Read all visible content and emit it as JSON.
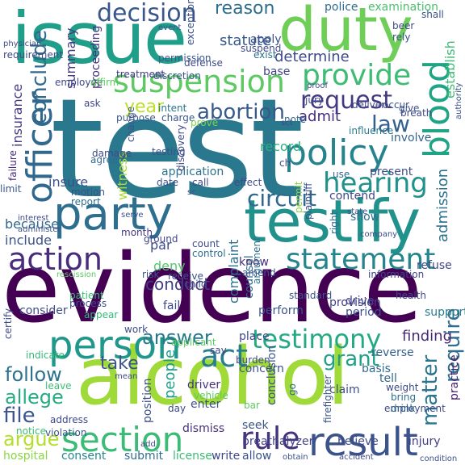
{
  "words": [
    {
      "text": "test",
      "color": "#2a788e"
    },
    {
      "text": "evidence",
      "color": "#440154"
    },
    {
      "text": "alcohol",
      "color": "#a0da39"
    },
    {
      "text": "issue",
      "color": "#1f9e89"
    },
    {
      "text": "duty",
      "color": "#6ece58"
    },
    {
      "text": "testify",
      "color": "#21918c"
    },
    {
      "text": "party",
      "color": "#2e6e8e"
    },
    {
      "text": "decision",
      "color": "#39568c"
    },
    {
      "text": "suspension",
      "color": "#5ec962"
    },
    {
      "text": "provide",
      "color": "#3fbc73"
    },
    {
      "text": "blood",
      "color": "#20a486"
    },
    {
      "text": "officer",
      "color": "#31688e"
    },
    {
      "text": "policy",
      "color": "#25838e"
    },
    {
      "text": "person",
      "color": "#1f988b"
    },
    {
      "text": "action",
      "color": "#472d7b"
    },
    {
      "text": "statement",
      "color": "#25858e"
    },
    {
      "text": "testimony",
      "color": "#23a983"
    },
    {
      "text": "section",
      "color": "#3bbb75"
    },
    {
      "text": "result",
      "color": "#3b528b"
    },
    {
      "text": "rule",
      "color": "#46337e"
    },
    {
      "text": "act",
      "color": "#277f8e"
    },
    {
      "text": "circuit",
      "color": "#31688e"
    },
    {
      "text": "hearing",
      "color": "#21918c"
    },
    {
      "text": "law",
      "color": "#355f8d"
    },
    {
      "text": "request",
      "color": "#443a83"
    },
    {
      "text": "abortion",
      "color": "#38598c"
    },
    {
      "text": "reason",
      "color": "#2e6e8e"
    },
    {
      "text": "statute",
      "color": "#38588c"
    },
    {
      "text": "determine",
      "color": "#3e4a89"
    },
    {
      "text": "answer",
      "color": "#2a788e"
    },
    {
      "text": "conclude",
      "color": "#31688e"
    },
    {
      "text": "year",
      "color": "#bddf26"
    },
    {
      "text": "grant",
      "color": "#1fa088"
    },
    {
      "text": "matter",
      "color": "#2a768e"
    },
    {
      "text": "require",
      "color": "#2e6f8e"
    },
    {
      "text": "follow",
      "color": "#2c728e"
    },
    {
      "text": "allege",
      "color": "#25ac82"
    },
    {
      "text": "take",
      "color": "#3b528b"
    },
    {
      "text": "argue",
      "color": "#b5de2b"
    },
    {
      "text": "file",
      "color": "#3a548c"
    },
    {
      "text": "admission",
      "color": "#2c718e"
    },
    {
      "text": "establish",
      "color": "#3dbc74"
    },
    {
      "text": "examination",
      "color": "#4ac16d"
    },
    {
      "text": "conduct",
      "color": "#433e85"
    },
    {
      "text": "deny",
      "color": "#52c569"
    },
    {
      "text": "finding",
      "color": "#482979"
    },
    {
      "text": "witness",
      "color": "#a8db34"
    },
    {
      "text": "insurance",
      "color": "#443983"
    },
    {
      "text": "summary",
      "color": "#443b84"
    },
    {
      "text": "proceeding",
      "color": "#46327e"
    },
    {
      "text": "record",
      "color": "#2ab07f"
    },
    {
      "text": "insure",
      "color": "#3b528b"
    },
    {
      "text": "admit",
      "color": "#472f7d"
    },
    {
      "text": "apply",
      "color": "#3a538b"
    },
    {
      "text": "base",
      "color": "#414487"
    },
    {
      "text": "police",
      "color": "#2f6c8e"
    },
    {
      "text": "reverse",
      "color": "#355f8d"
    },
    {
      "text": "involve",
      "color": "#33638d"
    },
    {
      "text": "present",
      "color": "#3e4c8a"
    },
    {
      "text": "contend",
      "color": "#3f4788"
    },
    {
      "text": "practice",
      "color": "#482071"
    },
    {
      "text": "complaint",
      "color": "#2c728e"
    },
    {
      "text": "counsel",
      "color": "#2e6e8e"
    },
    {
      "text": "people",
      "color": "#1f9f88"
    },
    {
      "text": "concern",
      "color": "#3b528b"
    },
    {
      "text": "because",
      "color": "#31688e"
    },
    {
      "text": "include",
      "color": "#3b528b"
    },
    {
      "text": "consider",
      "color": "#3e4a89"
    },
    {
      "text": "perform",
      "color": "#39568c"
    },
    {
      "text": "provision",
      "color": "#433e85"
    },
    {
      "text": "drive",
      "color": "#3f4788"
    },
    {
      "text": "period",
      "color": "#3a548c"
    },
    {
      "text": "support",
      "color": "#287d8e"
    },
    {
      "text": "breathalyzer",
      "color": "#414487"
    },
    {
      "text": "seek",
      "color": "#39568c"
    },
    {
      "text": "dismiss",
      "color": "#472f7d"
    },
    {
      "text": "enter",
      "color": "#3b528b"
    },
    {
      "text": "place",
      "color": "#3f4889"
    },
    {
      "text": "tell",
      "color": "#31688e"
    },
    {
      "text": "claim",
      "color": "#3e4c8a"
    },
    {
      "text": "basis",
      "color": "#2f6b8e"
    },
    {
      "text": "believe",
      "color": "#3e4a89"
    },
    {
      "text": "conclusion",
      "color": "#39558c"
    },
    {
      "text": "position",
      "color": "#3c4f8a"
    },
    {
      "text": "driver",
      "color": "#46337e"
    },
    {
      "text": "fail",
      "color": "#3f4788"
    },
    {
      "text": "application",
      "color": "#2c728e"
    },
    {
      "text": "show",
      "color": "#2e6e8e"
    },
    {
      "text": "refuse",
      "color": "#3f4889"
    },
    {
      "text": "know",
      "color": "#472f7d"
    },
    {
      "text": "par",
      "color": "#3e4a89"
    },
    {
      "text": "hospital",
      "color": "#8bd646"
    },
    {
      "text": "consent",
      "color": "#25848e"
    },
    {
      "text": "submit",
      "color": "#2f6c8e"
    },
    {
      "text": "license",
      "color": "#3dbc74"
    },
    {
      "text": "write",
      "color": "#3f4788"
    },
    {
      "text": "allow",
      "color": "#3b528b"
    },
    {
      "text": "injury",
      "color": "#433e85"
    },
    {
      "text": "intent",
      "color": "#2c728e"
    },
    {
      "text": "charge",
      "color": "#39568c"
    },
    {
      "text": "purpose",
      "color": "#38598c"
    },
    {
      "text": "prove",
      "color": "#7ad151"
    },
    {
      "text": "call",
      "color": "#3e4a89"
    },
    {
      "text": "motion",
      "color": "#3b528b"
    },
    {
      "text": "report",
      "color": "#2e6e8e"
    },
    {
      "text": "agree",
      "color": "#31688e"
    },
    {
      "text": "failure",
      "color": "#472d7b"
    },
    {
      "text": "give",
      "color": "#3b528b"
    },
    {
      "text": "influence",
      "color": "#2a788e"
    },
    {
      "text": "use",
      "color": "#31688e"
    },
    {
      "text": "right",
      "color": "#2e6e8e"
    },
    {
      "text": "month",
      "color": "#443983"
    },
    {
      "text": "risk",
      "color": "#39568c"
    },
    {
      "text": "child",
      "color": "#3e4a89"
    },
    {
      "text": "amend",
      "color": "#3b528b"
    },
    {
      "text": "argument",
      "color": "#2c728e"
    },
    {
      "text": "appear",
      "color": "#35b779"
    },
    {
      "text": "work",
      "color": "#3e4c8a"
    },
    {
      "text": "say",
      "color": "#3f4788"
    },
    {
      "text": "ground",
      "color": "#414487"
    },
    {
      "text": "employee",
      "color": "#3f4788"
    },
    {
      "text": "requirement",
      "color": "#3e4a89"
    },
    {
      "text": "treatment",
      "color": "#443b84"
    },
    {
      "text": "permission",
      "color": "#39568c"
    },
    {
      "text": "defense",
      "color": "#3e4a89"
    },
    {
      "text": "affirm",
      "color": "#5ec962"
    },
    {
      "text": "discretion",
      "color": "#3b528b"
    },
    {
      "text": "ask",
      "color": "#3f4788"
    },
    {
      "text": "note",
      "color": "#2e6e8e"
    },
    {
      "text": "jury",
      "color": "#3e4a89"
    },
    {
      "text": "exist",
      "color": "#2c728e"
    },
    {
      "text": "shall",
      "color": "#3b528b"
    },
    {
      "text": "certify",
      "color": "#3e4a89"
    },
    {
      "text": "limit",
      "color": "#39568c"
    },
    {
      "text": "patient",
      "color": "#3dbc74"
    },
    {
      "text": "health",
      "color": "#3e4a89"
    },
    {
      "text": "standard",
      "color": "#3b528b"
    },
    {
      "text": "information",
      "color": "#3f4788"
    },
    {
      "text": "process",
      "color": "#3e4a89"
    },
    {
      "text": "indicate",
      "color": "#35b779"
    },
    {
      "text": "applicant",
      "color": "#5ec962"
    },
    {
      "text": "address",
      "color": "#3e4a89"
    },
    {
      "text": "notice",
      "color": "#3dbc74"
    },
    {
      "text": "violation",
      "color": "#39568c"
    },
    {
      "text": "leave",
      "color": "#3dbc74"
    },
    {
      "text": "employment",
      "color": "#3e4a89"
    },
    {
      "text": "bring",
      "color": "#2e6e8e"
    },
    {
      "text": "drink",
      "color": "#31688e"
    },
    {
      "text": "weight",
      "color": "#3e4a89"
    },
    {
      "text": "firefighter",
      "color": "#3b528b"
    },
    {
      "text": "burden",
      "color": "#3e4a89"
    },
    {
      "text": "vehicle",
      "color": "#5ec962"
    },
    {
      "text": "bar",
      "color": "#5ec962"
    },
    {
      "text": "go",
      "color": "#31688e"
    },
    {
      "text": "day",
      "color": "#3e4a89"
    },
    {
      "text": "receive",
      "color": "#3b528b"
    },
    {
      "text": "control",
      "color": "#2e6e8e"
    },
    {
      "text": "count",
      "color": "#3e4a89"
    },
    {
      "text": "date",
      "color": "#3b528b"
    },
    {
      "text": "effect",
      "color": "#3e4a89"
    },
    {
      "text": "plaintiff",
      "color": "#3b528b"
    },
    {
      "text": "permit",
      "color": "#8bd646"
    },
    {
      "text": "discovery",
      "color": "#3e4a89"
    },
    {
      "text": "testing",
      "color": "#3b528b"
    },
    {
      "text": "damage",
      "color": "#3e4a89"
    },
    {
      "text": "change",
      "color": "#3b528b"
    },
    {
      "text": "breath",
      "color": "#3e4a89"
    },
    {
      "text": "authority",
      "color": "#3b528b"
    },
    {
      "text": "deliver",
      "color": "#3e4a89"
    },
    {
      "text": "occur",
      "color": "#3b528b"
    },
    {
      "text": "beer",
      "color": "#3e4a89"
    },
    {
      "text": "rely",
      "color": "#3b528b"
    },
    {
      "text": "suspend",
      "color": "#3e4a89"
    },
    {
      "text": "exception",
      "color": "#3b528b"
    },
    {
      "text": "physician",
      "color": "#3e4a89"
    },
    {
      "text": "administer",
      "color": "#3b528b"
    },
    {
      "text": "interest",
      "color": "#3e4a89"
    },
    {
      "text": "rescission",
      "color": "#5ec962"
    },
    {
      "text": "company",
      "color": "#3e4a89"
    },
    {
      "text": "condition",
      "color": "#3b528b"
    },
    {
      "text": "accident",
      "color": "#3e4a89"
    },
    {
      "text": "obtain",
      "color": "#3b528b"
    },
    {
      "text": "proof",
      "color": "#3e4a89"
    },
    {
      "text": "serve",
      "color": "#3b528b"
    },
    {
      "text": "mean",
      "color": "#3e4a89"
    },
    {
      "text": "state",
      "color": "#3b528b"
    },
    {
      "text": "add",
      "color": "#3e4a89"
    },
    {
      "text": "event",
      "color": "#3b528b"
    },
    {
      "text": "ch",
      "color": "#3e4a89"
    },
    {
      "text": "sc",
      "color": "#3b528b"
    },
    {
      "text": "sct",
      "color": "#3e4a89"
    }
  ]
}
